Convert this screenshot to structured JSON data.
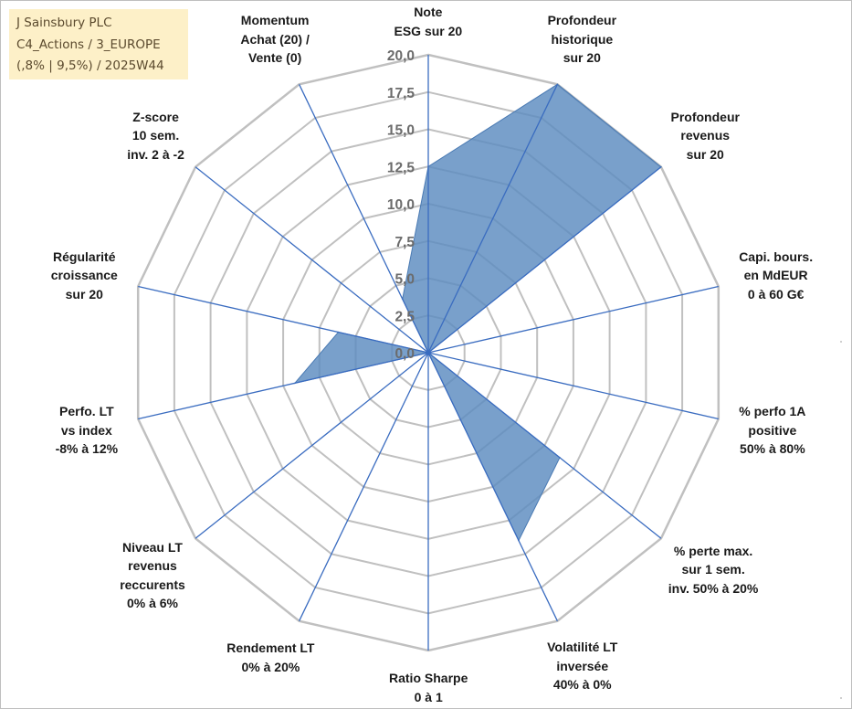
{
  "info": {
    "line1": "J Sainsbury PLC",
    "line2": "C4_Actions / 3_EUROPE",
    "line3": "(,8% | 9,5%) / 2025W44"
  },
  "colors": {
    "fill": "#5b8bc0",
    "spoke": "#3a6cc0",
    "grid": "#c0c0c0",
    "tick": "#6b6b6b",
    "info_bg": "#fdf0c8"
  },
  "chart_data": {
    "type": "radar",
    "title": "",
    "rmin": 0,
    "rmax": 20,
    "ticks": [
      "0,0",
      "2,5",
      "5,0",
      "7,5",
      "10,0",
      "12,5",
      "15,0",
      "17,5",
      "20,0"
    ],
    "categories": [
      {
        "lines": [
          "Note",
          "ESG sur 20"
        ]
      },
      {
        "lines": [
          "Profondeur",
          "historique",
          "sur 20"
        ]
      },
      {
        "lines": [
          "Profondeur",
          "revenus",
          "sur 20"
        ]
      },
      {
        "lines": [
          "Capi. bours.",
          "en MdEUR",
          "0 à 60 G€"
        ]
      },
      {
        "lines": [
          "% perfo 1A",
          "positive",
          "50% à 80%"
        ]
      },
      {
        "lines": [
          "% perte max.",
          "sur 1 sem.",
          "inv. 50% à 20%"
        ]
      },
      {
        "lines": [
          "Volatilité LT",
          "inversée",
          "40% à 0%"
        ]
      },
      {
        "lines": [
          "Ratio Sharpe",
          "0 à 1"
        ]
      },
      {
        "lines": [
          "Rendement LT",
          "0% à 20%"
        ]
      },
      {
        "lines": [
          "Niveau LT",
          "revenus",
          "reccurents",
          "0% à 6%"
        ]
      },
      {
        "lines": [
          "Perfo. LT",
          "vs index",
          "-8% à 12%"
        ]
      },
      {
        "lines": [
          "Régularité",
          "croissance",
          "sur 20"
        ]
      },
      {
        "lines": [
          "Z-score",
          "10 sem.",
          "inv. 2 à -2"
        ]
      },
      {
        "lines": [
          "Momentum",
          "Achat (20) /",
          "Vente (0)"
        ]
      }
    ],
    "series": [
      {
        "name": "J Sainsbury PLC",
        "values": [
          12.5,
          20,
          20,
          0,
          0,
          11.3,
          14.0,
          0,
          0,
          0,
          9.2,
          6.2,
          0,
          4.0
        ]
      }
    ]
  }
}
